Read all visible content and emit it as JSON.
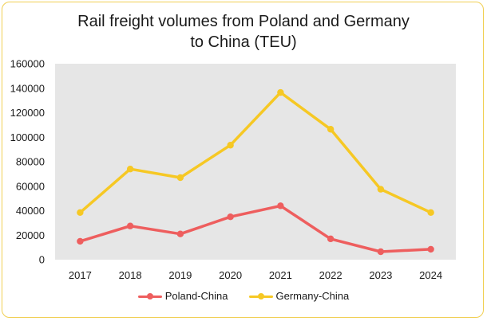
{
  "chart_data": {
    "type": "line",
    "title_lines": [
      "Rail freight volumes from Poland and Germany",
      "to China (TEU)"
    ],
    "categories": [
      "2017",
      "2018",
      "2019",
      "2020",
      "2021",
      "2022",
      "2023",
      "2024"
    ],
    "y_ticks": [
      "0",
      "20000",
      "40000",
      "60000",
      "80000",
      "100000",
      "120000",
      "140000",
      "160000"
    ],
    "ylim": [
      0,
      160000
    ],
    "grid": false,
    "plot_background": "#e6e6e6",
    "legend_position": "bottom",
    "series": [
      {
        "name": "Poland-China",
        "color": "#ee5e5e",
        "values": [
          15000,
          27500,
          21000,
          35000,
          44000,
          17000,
          6500,
          8500
        ]
      },
      {
        "name": "Germany-China",
        "color": "#f6c824",
        "values": [
          38500,
          74000,
          67000,
          93500,
          136500,
          106500,
          57500,
          38500
        ]
      }
    ]
  }
}
